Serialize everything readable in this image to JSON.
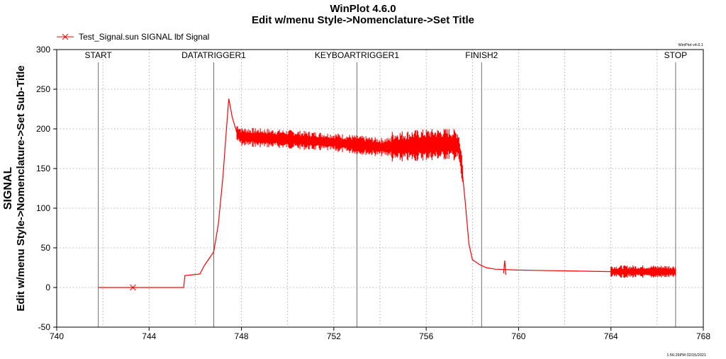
{
  "chart_data": {
    "type": "line",
    "title": "WinPlot 4.6.0",
    "subtitle": "Edit w/menu Style->Nomenclature->Set Title",
    "ylabel": "SIGNAL",
    "ylabel2": "Edit w/menu Style->Nomenclature->Set Sub-Title",
    "xlabel": "",
    "xlim": [
      740,
      768
    ],
    "ylim": [
      -50,
      300
    ],
    "x_ticks": [
      740,
      744,
      748,
      752,
      756,
      760,
      764,
      768
    ],
    "y_ticks": [
      -50,
      0,
      50,
      100,
      150,
      200,
      250,
      300
    ],
    "grid": true,
    "legend_position": "top-left",
    "legend": "Test_Signal.sun  SIGNAL  lbf  Signal",
    "version_tag": "WinPlot v4.6.1",
    "timestamp": "1:56:26PM 02/15/2021",
    "markers": [
      {
        "label": "START",
        "x": 741.8
      },
      {
        "label": "DATATRIGGER1",
        "x": 746.8
      },
      {
        "label": "KEYBOARTRIGGER1",
        "x": 753.0
      },
      {
        "label": "FINISH2",
        "x": 758.4
      },
      {
        "label": "STOP",
        "x": 766.8
      }
    ],
    "series": [
      {
        "name": "Test_Signal.sun SIGNAL lbf Signal",
        "color": "#ff0000",
        "x": [
          741.8,
          745.5,
          745.55,
          746.2,
          746.4,
          746.8,
          747.0,
          747.2,
          747.35,
          747.45,
          747.6,
          747.8,
          748.0,
          750.0,
          752.0,
          753.0,
          754.0,
          755.0,
          756.0,
          757.0,
          757.4,
          757.55,
          757.7,
          757.85,
          758.0,
          758.3,
          758.6,
          759.0,
          760.0,
          762.0,
          764.0,
          765.0,
          766.0,
          766.8
        ],
        "y": [
          0,
          0,
          15,
          17,
          28,
          45,
          80,
          140,
          200,
          238,
          215,
          195,
          190,
          187,
          183,
          180,
          177,
          178,
          180,
          181,
          179,
          150,
          105,
          55,
          35,
          29,
          25,
          23,
          22,
          21,
          20,
          20,
          20,
          20
        ],
        "noise_band": [
          {
            "x0": 747.8,
            "x1": 754.5,
            "amplitude": 12
          },
          {
            "x0": 754.5,
            "x1": 757.6,
            "amplitude": 20
          },
          {
            "x0": 764.0,
            "x1": 766.8,
            "amplitude": 8
          }
        ]
      }
    ]
  }
}
